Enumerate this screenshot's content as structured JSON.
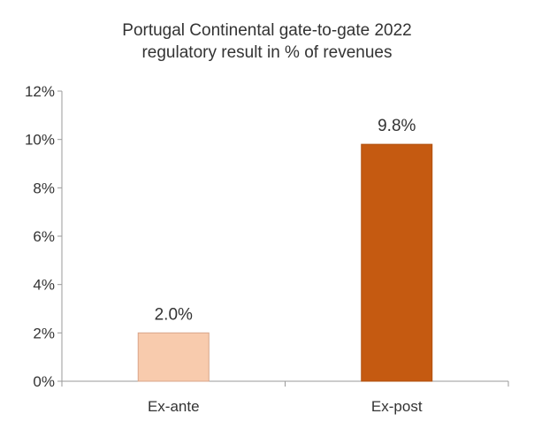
{
  "chart_data": {
    "type": "bar",
    "title": [
      "Portugal Continental gate-to-gate 2022",
      "regulatory result in % of revenues"
    ],
    "categories": [
      "Ex-ante",
      "Ex-post"
    ],
    "values": [
      2.0,
      9.8
    ],
    "data_labels": [
      "2.0%",
      "9.8%"
    ],
    "bar_colors": [
      "#F8CBAD",
      "#C55A11"
    ],
    "bar_edge_colors": [
      "#D9A58A",
      "#B0500F"
    ],
    "ylim": [
      0,
      12
    ],
    "yticks": [
      0,
      2,
      4,
      6,
      8,
      10,
      12
    ],
    "ytick_labels": [
      "0%",
      "2%",
      "4%",
      "6%",
      "8%",
      "10%",
      "12%"
    ],
    "xlabel": "",
    "ylabel": "",
    "grid": false,
    "legend": "none"
  }
}
